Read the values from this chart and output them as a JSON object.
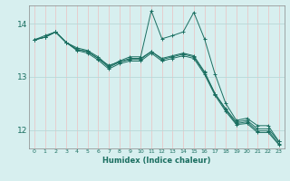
{
  "xlabel": "Humidex (Indice chaleur)",
  "ylabel": "",
  "bg_color": "#d7efef",
  "vgrid_color": "#e8c8c8",
  "hgrid_color": "#b8d8d8",
  "line_color": "#1a6e60",
  "xlim": [
    -0.5,
    23.5
  ],
  "ylim": [
    11.65,
    14.35
  ],
  "yticks": [
    12,
    13,
    14
  ],
  "xtick_labels": [
    "0",
    "1",
    "2",
    "3",
    "4",
    "5",
    "6",
    "7",
    "8",
    "9",
    "10",
    "11",
    "12",
    "13",
    "14",
    "15",
    "16",
    "17",
    "18",
    "19",
    "20",
    "21",
    "22",
    "23"
  ],
  "series": [
    [
      13.7,
      13.78,
      13.85,
      13.65,
      13.55,
      13.5,
      13.38,
      13.2,
      13.3,
      13.38,
      13.38,
      14.25,
      13.72,
      13.78,
      13.85,
      14.22,
      13.72,
      13.05,
      12.5,
      12.18,
      12.22,
      12.08,
      12.08,
      11.78
    ],
    [
      13.7,
      13.75,
      13.85,
      13.65,
      13.52,
      13.48,
      13.35,
      13.22,
      13.28,
      13.35,
      13.35,
      13.48,
      13.35,
      13.4,
      13.45,
      13.4,
      13.1,
      12.68,
      12.4,
      12.15,
      12.18,
      12.02,
      12.02,
      11.78
    ],
    [
      13.7,
      13.75,
      13.85,
      13.65,
      13.52,
      13.48,
      13.35,
      13.18,
      13.28,
      13.33,
      13.33,
      13.48,
      13.33,
      13.38,
      13.43,
      13.38,
      13.08,
      12.68,
      12.38,
      12.12,
      12.15,
      11.98,
      11.98,
      11.74
    ],
    [
      13.7,
      13.75,
      13.85,
      13.65,
      13.5,
      13.45,
      13.32,
      13.15,
      13.25,
      13.3,
      13.3,
      13.45,
      13.3,
      13.35,
      13.4,
      13.35,
      13.05,
      12.65,
      12.35,
      12.1,
      12.12,
      11.95,
      11.95,
      11.72
    ]
  ]
}
